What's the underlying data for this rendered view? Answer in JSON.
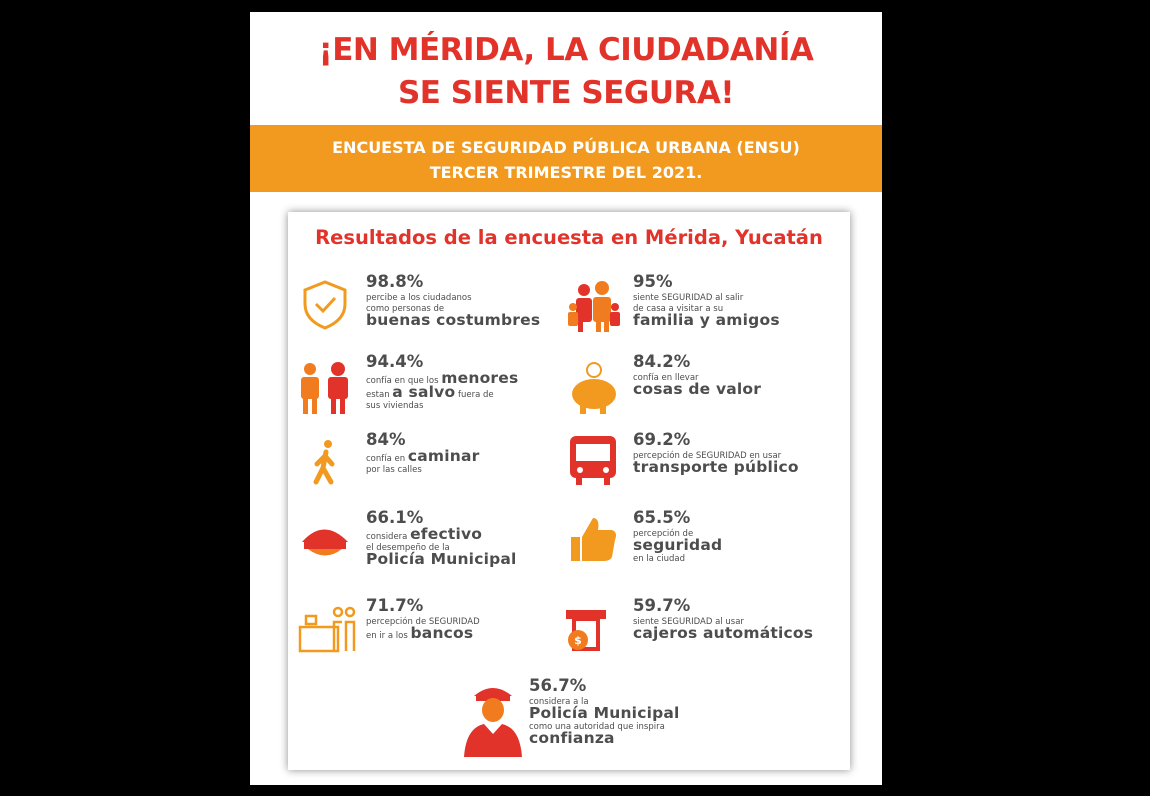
{
  "header": {
    "title": [
      "¡EN MÉRIDA, LA CIUDADANÍA",
      "SE SIENTE SEGURA!"
    ],
    "banner": [
      "ENCUESTA DE SEGURIDAD PÚBLICA URBANA (ENSU)",
      "TERCER TRIMESTRE DEL 2021."
    ]
  },
  "subtitle": "Resultados de la encuesta en Mérida, Yucatán",
  "items": [
    {
      "percent": "98.8%",
      "lines": [
        [
          {
            "text": "percibe a los ciudadanos"
          }
        ],
        [
          {
            "text": "como personas de"
          }
        ],
        [
          {
            "text": "buenas costumbres",
            "emph": true
          }
        ]
      ]
    },
    {
      "percent": "95%",
      "lines": [
        [
          {
            "text": "siente SEGURIDAD al salir"
          }
        ],
        [
          {
            "text": "de casa a visitar a su"
          }
        ],
        [
          {
            "text": "familia y amigos",
            "emph": true
          }
        ]
      ]
    },
    {
      "percent": "94.4%",
      "lines": [
        [
          {
            "text": "confía en que los "
          },
          {
            "text": "menores",
            "emph": true
          }
        ],
        [
          {
            "text": "estan "
          },
          {
            "text": "a salvo",
            "emph": true
          },
          {
            "text": " fuera de"
          }
        ],
        [
          {
            "text": "sus viviendas"
          }
        ]
      ]
    },
    {
      "percent": "84.2%",
      "lines": [
        [
          {
            "text": "confía en llevar"
          }
        ],
        [
          {
            "text": "cosas de valor",
            "emph": true
          }
        ]
      ]
    },
    {
      "percent": "84%",
      "lines": [
        [
          {
            "text": "confía en "
          },
          {
            "text": "caminar",
            "emph": true
          }
        ],
        [
          {
            "text": "por las calles"
          }
        ]
      ]
    },
    {
      "percent": "69.2%",
      "lines": [
        [
          {
            "text": "percepción de SEGURIDAD en usar"
          }
        ],
        [
          {
            "text": "transporte público",
            "emph": true
          }
        ]
      ]
    },
    {
      "percent": "66.1%",
      "lines": [
        [
          {
            "text": "considera "
          },
          {
            "text": "efectivo",
            "emph": true
          }
        ],
        [
          {
            "text": "el desempeño de la"
          }
        ],
        [
          {
            "text": "Policía Municipal",
            "emph": true
          }
        ]
      ]
    },
    {
      "percent": "65.5%",
      "lines": [
        [
          {
            "text": "percepción de"
          }
        ],
        [
          {
            "text": "seguridad",
            "emph": true
          }
        ],
        [
          {
            "text": "en la ciudad"
          }
        ]
      ]
    },
    {
      "percent": "71.7%",
      "lines": [
        [
          {
            "text": "percepción de SEGURIDAD"
          }
        ],
        [
          {
            "text": "en ir a los "
          },
          {
            "text": "bancos",
            "emph": true
          }
        ]
      ]
    },
    {
      "percent": "59.7%",
      "lines": [
        [
          {
            "text": "siente SEGURIDAD al usar"
          }
        ],
        [
          {
            "text": "cajeros automáticos",
            "emph": true
          }
        ]
      ]
    },
    {
      "percent": "56.7%",
      "lines": [
        [
          {
            "text": "considera a la"
          }
        ],
        [
          {
            "text": "Policía Municipal",
            "emph": true
          }
        ],
        [
          {
            "text": "como una autoridad que inspira"
          }
        ],
        [
          {
            "text": "confianza",
            "emph": true
          }
        ]
      ]
    }
  ]
}
